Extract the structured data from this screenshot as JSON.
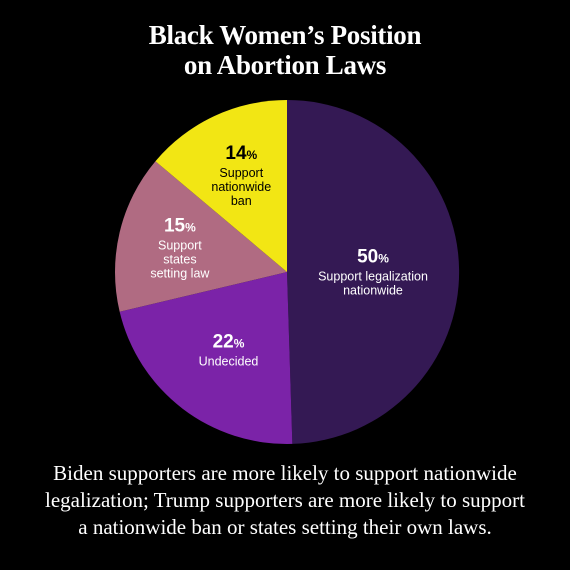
{
  "title": {
    "line1": "Black Women’s Position",
    "line2": "on Abortion Laws"
  },
  "caption": {
    "line1": "Biden supporters are more likely to support nationwide",
    "line2": "legalization; Trump supporters are more likely to support",
    "line3": "a nationwide ban or states setting their own laws."
  },
  "chart_data": {
    "type": "pie",
    "title": "Black Women’s Position on Abortion Laws",
    "slices": [
      {
        "value": 50,
        "label_lines": [
          "Support legalization",
          "nationwide"
        ],
        "color": "#341954"
      },
      {
        "value": 22,
        "label_lines": [
          "Undecided"
        ],
        "color": "#7b23a8"
      },
      {
        "value": 15,
        "label_lines": [
          "Support",
          "states",
          "setting law"
        ],
        "color": "#b06b82"
      },
      {
        "value": 14,
        "label_lines": [
          "Support",
          "nationwide",
          "ban"
        ],
        "color": "#f2e614"
      }
    ],
    "value_suffix": "%"
  }
}
